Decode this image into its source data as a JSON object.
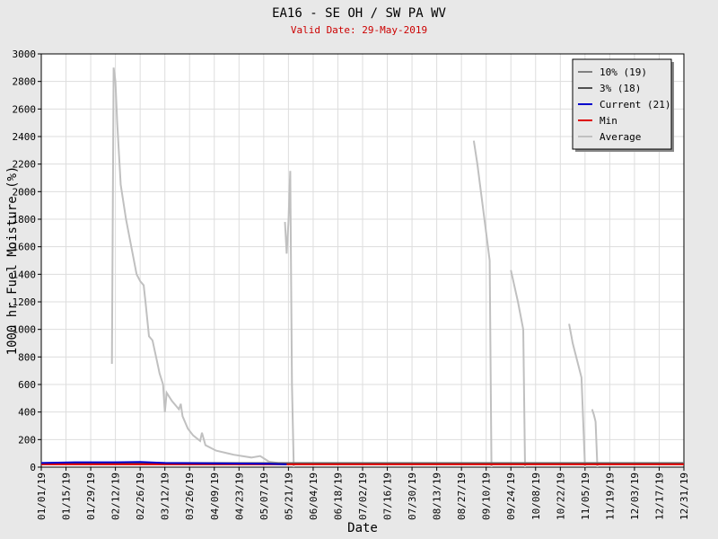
{
  "chart_data": {
    "type": "line",
    "title": "EA16 - SE OH / SW PA WV",
    "subtitle": "Valid Date: 29-May-2019",
    "x_label": "Date",
    "y_label": "1000 hr Fuel Moisture (%)",
    "xlim": [
      "2019-01-01",
      "2019-12-31"
    ],
    "xticks": [
      {
        "value": "2019-01-01",
        "label": "01/01/19"
      },
      {
        "value": "2019-01-15",
        "label": "01/15/19"
      },
      {
        "value": "2019-01-29",
        "label": "01/29/19"
      },
      {
        "value": "2019-02-12",
        "label": "02/12/19"
      },
      {
        "value": "2019-02-26",
        "label": "02/26/19"
      },
      {
        "value": "2019-03-12",
        "label": "03/12/19"
      },
      {
        "value": "2019-03-26",
        "label": "03/26/19"
      },
      {
        "value": "2019-04-09",
        "label": "04/09/19"
      },
      {
        "value": "2019-04-23",
        "label": "04/23/19"
      },
      {
        "value": "2019-05-07",
        "label": "05/07/19"
      },
      {
        "value": "2019-05-21",
        "label": "05/21/19"
      },
      {
        "value": "2019-06-04",
        "label": "06/04/19"
      },
      {
        "value": "2019-06-18",
        "label": "06/18/19"
      },
      {
        "value": "2019-07-02",
        "label": "07/02/19"
      },
      {
        "value": "2019-07-16",
        "label": "07/16/19"
      },
      {
        "value": "2019-07-30",
        "label": "07/30/19"
      },
      {
        "value": "2019-08-13",
        "label": "08/13/19"
      },
      {
        "value": "2019-08-27",
        "label": "08/27/19"
      },
      {
        "value": "2019-09-10",
        "label": "09/10/19"
      },
      {
        "value": "2019-09-24",
        "label": "09/24/19"
      },
      {
        "value": "2019-10-08",
        "label": "10/08/19"
      },
      {
        "value": "2019-10-22",
        "label": "10/22/19"
      },
      {
        "value": "2019-11-05",
        "label": "11/05/19"
      },
      {
        "value": "2019-11-19",
        "label": "11/19/19"
      },
      {
        "value": "2019-12-03",
        "label": "12/03/19"
      },
      {
        "value": "2019-12-17",
        "label": "12/17/19"
      },
      {
        "value": "2019-12-31",
        "label": "12/31/19"
      }
    ],
    "ylim": [
      0,
      3000
    ],
    "yticks": [
      0,
      200,
      400,
      600,
      800,
      1000,
      1200,
      1400,
      1600,
      1800,
      2000,
      2200,
      2400,
      2600,
      2800,
      3000
    ],
    "grid": true,
    "legend": "top-right",
    "series": [
      {
        "name": "10% (19)",
        "color": "#808080",
        "x": [
          "2019-01-01",
          "2019-12-31"
        ],
        "values": [
          30,
          30
        ]
      },
      {
        "name": "3% (18)",
        "color": "#505050",
        "x": [
          "2019-01-01",
          "2019-12-31"
        ],
        "values": [
          25,
          25
        ]
      },
      {
        "name": "Current (21)",
        "color": "#0000cc",
        "x": [
          "2019-01-01",
          "2019-01-20",
          "2019-02-12",
          "2019-02-26",
          "2019-03-12",
          "2019-05-10",
          "2019-05-20"
        ],
        "values": [
          30,
          35,
          35,
          38,
          30,
          25,
          20
        ]
      },
      {
        "name": "Min",
        "color": "#dd0000",
        "x": [
          "2019-01-01",
          "2019-12-31"
        ],
        "values": [
          20,
          20
        ]
      },
      {
        "name": "Average",
        "color": "#c0c0c0",
        "x": [
          "2019-02-10",
          "2019-02-11",
          "2019-02-12",
          "2019-02-13",
          "2019-02-15",
          "2019-02-18",
          "2019-02-21",
          "2019-02-24",
          "2019-02-26",
          "2019-02-28",
          "2019-03-01",
          "2019-03-03",
          "2019-03-05",
          "2019-03-07",
          "2019-03-09",
          "2019-03-11",
          "2019-03-12",
          "2019-03-13",
          "2019-03-16",
          "2019-03-20",
          "2019-03-21",
          "2019-03-22",
          "2019-03-25",
          "2019-03-28",
          "2019-04-01",
          "2019-04-02",
          "2019-04-04",
          "2019-04-10",
          "2019-04-20",
          "2019-04-30",
          "2019-05-05",
          "2019-05-10",
          "2019-05-15",
          "2019-05-18",
          "2019-05-19",
          "2019-05-20",
          "2019-05-21",
          "2019-05-22",
          "2019-05-23",
          "2019-05-24",
          "2019-09-02",
          "2019-09-03",
          "2019-09-05",
          "2019-09-10",
          "2019-09-12",
          "2019-09-13",
          "2019-09-23",
          "2019-09-24",
          "2019-09-28",
          "2019-10-01",
          "2019-10-02",
          "2019-10-26",
          "2019-10-27",
          "2019-10-29",
          "2019-11-03",
          "2019-11-05",
          "2019-11-08",
          "2019-11-09",
          "2019-11-10",
          "2019-11-11",
          "2019-11-12"
        ],
        "values": [
          750,
          2900,
          2800,
          2500,
          2050,
          1800,
          1600,
          1400,
          1350,
          1320,
          1200,
          950,
          920,
          800,
          680,
          600,
          400,
          540,
          480,
          420,
          460,
          370,
          280,
          230,
          190,
          250,
          160,
          120,
          90,
          70,
          80,
          40,
          30,
          null,
          1780,
          1550,
          1780,
          2150,
          600,
          0,
          null,
          2370,
          2200,
          1700,
          1500,
          0,
          null,
          1430,
          1200,
          1000,
          0,
          null,
          1040,
          900,
          650,
          0,
          null,
          420,
          380,
          330,
          0
        ]
      }
    ]
  }
}
